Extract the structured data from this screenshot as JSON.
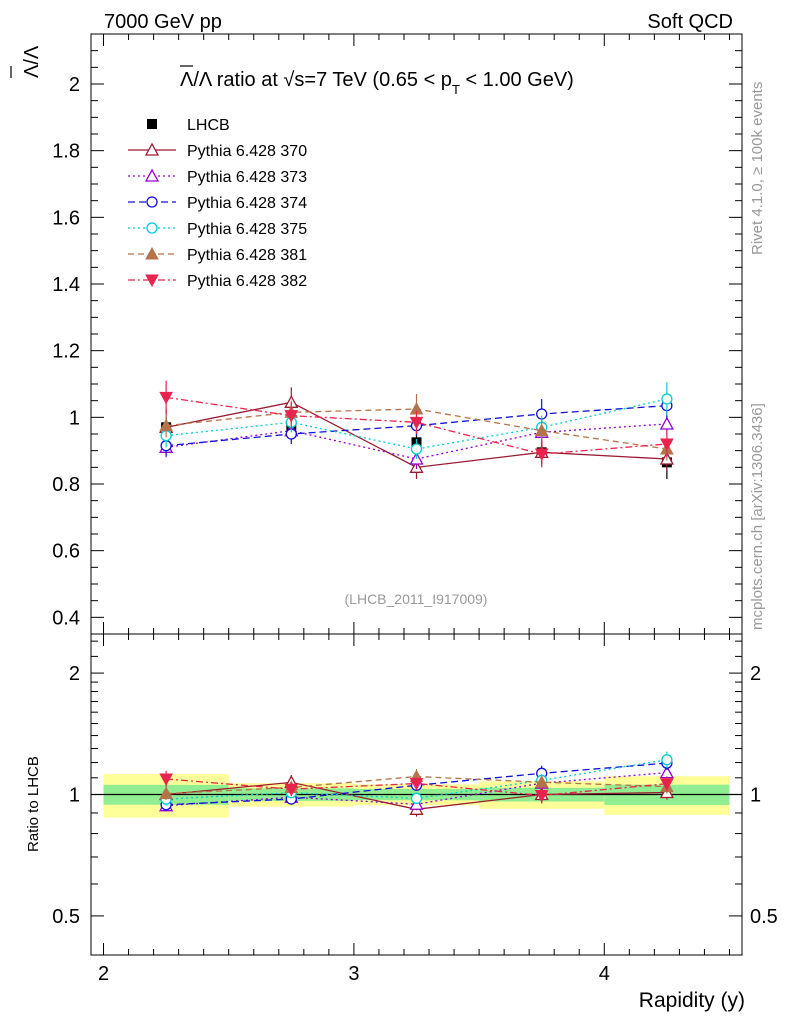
{
  "header": {
    "left": "7000 GeV pp",
    "right": "Soft QCD"
  },
  "side": {
    "rivet": "Rivet 4.1.0, ≥ 100k events",
    "mcplots": "mcplots.cern.ch [arXiv:1306.3436]"
  },
  "chart_data": {
    "type": "line",
    "title": {
      "main": "Λ/Λ ratio at √s=7 TeV (0.65 < p",
      "sub": "T",
      "tail": " < 1.00 GeV)"
    },
    "ylabel_top": "Λ/Λ",
    "ylabel_bottom": "Ratio to LHCB",
    "xlabel": "Rapidity (y)",
    "analysis_tag": "(LHCB_2011_I917009)",
    "xlim": [
      1.95,
      4.55
    ],
    "ylim_top": [
      0.35,
      2.15
    ],
    "ylim_bottom": [
      0.4,
      2.5
    ],
    "x_ticks": [
      {
        "v": 2,
        "label": "2"
      },
      {
        "v": 3,
        "label": "3"
      },
      {
        "v": 4,
        "label": "4"
      }
    ],
    "y_ticks_top": [
      {
        "v": 0.4,
        "label": "0.4"
      },
      {
        "v": 0.6,
        "label": "0.6"
      },
      {
        "v": 0.8,
        "label": "0.8"
      },
      {
        "v": 1.0,
        "label": "1"
      },
      {
        "v": 1.2,
        "label": "1.2"
      },
      {
        "v": 1.4,
        "label": "1.4"
      },
      {
        "v": 1.6,
        "label": "1.6"
      },
      {
        "v": 1.8,
        "label": "1.8"
      },
      {
        "v": 2.0,
        "label": "2"
      }
    ],
    "y_ticks_bottom": [
      {
        "v": 0.5,
        "label": "0.5"
      },
      {
        "v": 1.0,
        "label": "1"
      },
      {
        "v": 2.0,
        "label": "2"
      }
    ],
    "data": {
      "name": "LHCB",
      "x": [
        2.25,
        2.75,
        3.25,
        3.75,
        4.25
      ],
      "xerr": [
        0.25,
        0.25,
        0.25,
        0.25,
        0.25
      ],
      "y": [
        0.97,
        0.975,
        0.925,
        0.895,
        0.865
      ],
      "band_stat": [
        0.055,
        0.035,
        0.03,
        0.035,
        0.05
      ],
      "band_tot": [
        0.12,
        0.065,
        0.055,
        0.07,
        0.095
      ]
    },
    "series": [
      {
        "name": "Pythia 6.428 370",
        "color": "#9b1b30",
        "dash": "",
        "marker": "tri-up-open",
        "values": [
          0.97,
          1.045,
          0.85,
          0.895,
          0.875
        ],
        "err": [
          0.03,
          0.045,
          0.035,
          0.04,
          0.035
        ]
      },
      {
        "name": "Pythia 6.428 373",
        "color": "#9400d3",
        "dash": "2,3",
        "marker": "tri-up-open",
        "values": [
          0.91,
          0.96,
          0.875,
          0.955,
          0.98
        ],
        "err": [
          0.03,
          0.03,
          0.03,
          0.035,
          0.035
        ]
      },
      {
        "name": "Pythia 6.428 374",
        "color": "#1010d8",
        "dash": "7,4",
        "marker": "circle-open",
        "values": [
          0.915,
          0.95,
          0.975,
          1.01,
          1.035
        ],
        "err": [
          0.03,
          0.03,
          0.03,
          0.045,
          0.04
        ]
      },
      {
        "name": "Pythia 6.428 375",
        "color": "#00ced1",
        "dash": "2,3",
        "marker": "circle-open",
        "values": [
          0.945,
          0.985,
          0.905,
          0.97,
          1.055
        ],
        "err": [
          0.035,
          0.03,
          0.03,
          0.035,
          0.05
        ]
      },
      {
        "name": "Pythia 6.428 381",
        "color": "#b5734a",
        "dash": "6,4",
        "marker": "tri-up-filled",
        "values": [
          0.975,
          1.015,
          1.025,
          0.96,
          0.905
        ],
        "err": [
          0.035,
          0.035,
          0.045,
          0.03,
          0.035
        ]
      },
      {
        "name": "Pythia 6.428 382",
        "color": "#e8244e",
        "dash": "7,3,2,3",
        "marker": "tri-down-filled",
        "values": [
          1.06,
          1.005,
          0.985,
          0.89,
          0.92
        ],
        "err": [
          0.05,
          0.04,
          0.035,
          0.04,
          0.04
        ]
      }
    ]
  }
}
